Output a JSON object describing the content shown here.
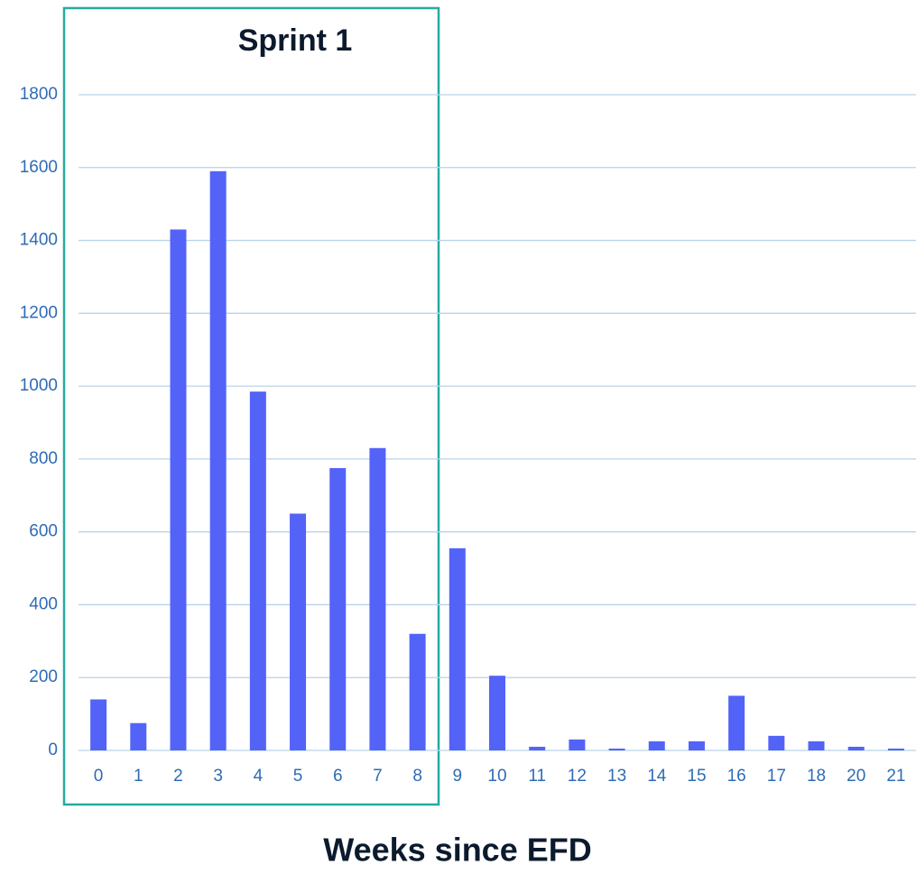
{
  "chart_data": {
    "type": "bar",
    "annotation": "Sprint 1",
    "x_label": "Weeks since EFD",
    "categories": [
      "0",
      "1",
      "2",
      "3",
      "4",
      "5",
      "6",
      "7",
      "8",
      "9",
      "10",
      "11",
      "12",
      "13",
      "14",
      "15",
      "16",
      "17",
      "18",
      "20",
      "21"
    ],
    "values": [
      140,
      75,
      1430,
      1590,
      985,
      650,
      775,
      830,
      320,
      555,
      205,
      10,
      30,
      5,
      25,
      25,
      150,
      40,
      25,
      10,
      5
    ],
    "color": "#5363f8",
    "ylim": [
      0,
      1800
    ],
    "yticks": [
      0,
      200,
      400,
      600,
      800,
      1000,
      1200,
      1400,
      1600,
      1800
    ],
    "grid": true
  }
}
